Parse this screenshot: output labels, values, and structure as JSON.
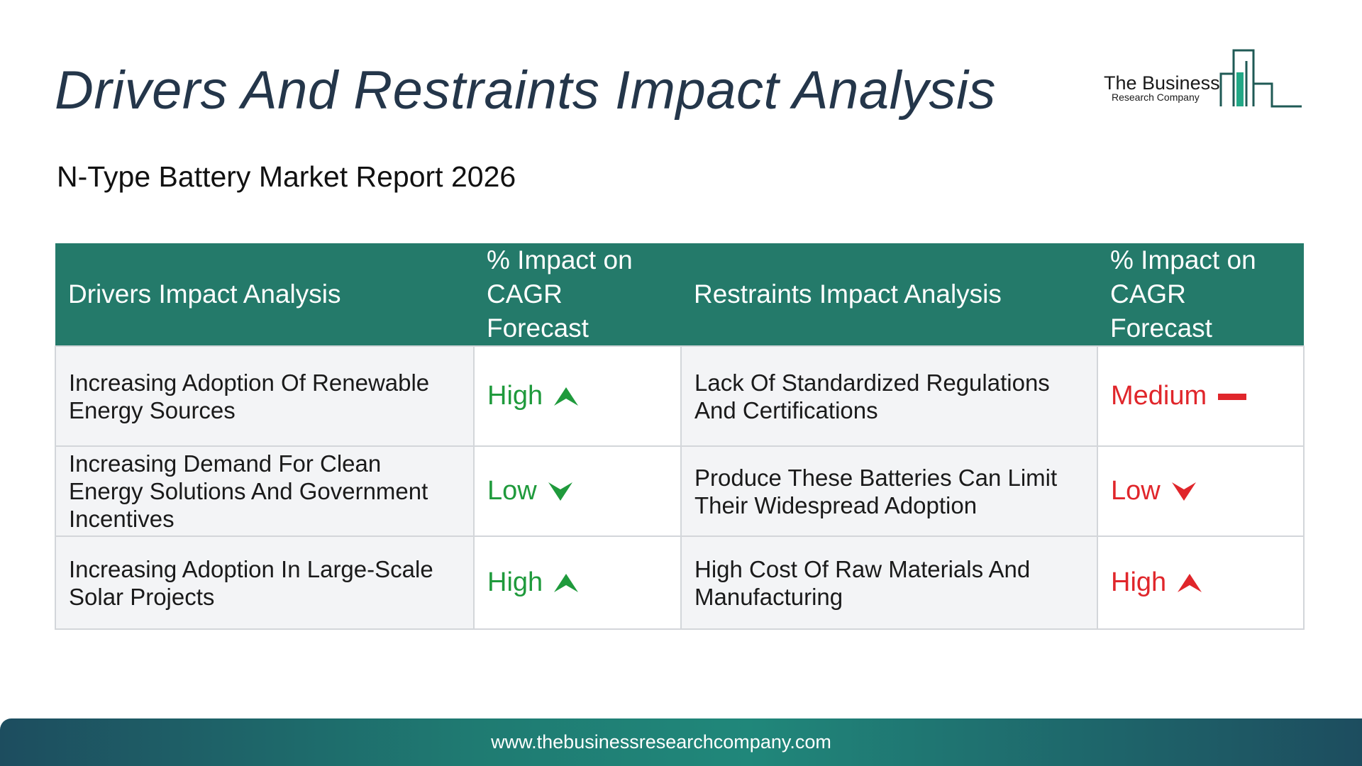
{
  "title": "Drivers And Restraints Impact Analysis",
  "subtitle": "N-Type Battery Market Report 2026",
  "logo": {
    "line1": "The Business",
    "line2": "Research Company"
  },
  "table": {
    "headers": [
      "Drivers Impact Analysis",
      "% Impact on CAGR Forecast",
      "Restraints Impact Analysis",
      "% Impact on CAGR Forecast"
    ],
    "rows": [
      {
        "driver": "Increasing Adoption Of Renewable Energy Sources",
        "driver_impact": "High",
        "driver_icon": "arrow-up-icon",
        "restraint": "Lack Of Standardized Regulations And Certifications",
        "restraint_impact": "Medium",
        "restraint_icon": "dash-icon"
      },
      {
        "driver": "Increasing Demand For Clean Energy Solutions And Government Incentives",
        "driver_impact": "Low",
        "driver_icon": "arrow-down-icon",
        "restraint": "Produce These Batteries Can Limit Their Widespread Adoption",
        "restraint_impact": "Low",
        "restraint_icon": "arrow-down-icon"
      },
      {
        "driver": "Increasing Adoption In Large-Scale Solar Projects",
        "driver_impact": "High",
        "driver_icon": "arrow-up-icon",
        "restraint": "High Cost Of Raw Materials And Manufacturing",
        "restraint_impact": "High",
        "restraint_icon": "arrow-up-icon"
      }
    ]
  },
  "colors": {
    "header_bg": "#247a6a",
    "driver_impact": "#1f9a3c",
    "restraint_impact": "#e0262b",
    "title": "#24364a"
  },
  "footer": {
    "url": "www.thebusinessresearchcompany.com"
  }
}
